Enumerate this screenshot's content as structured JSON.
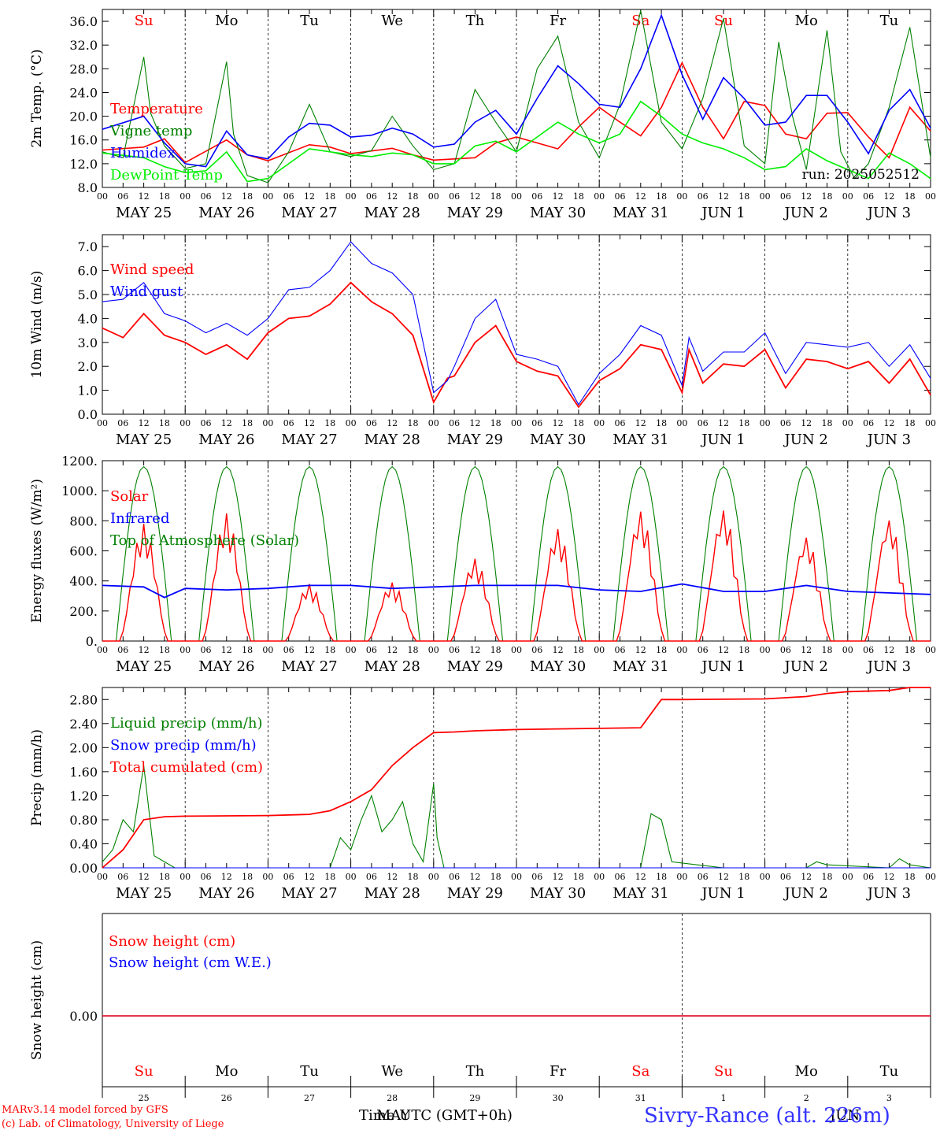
{
  "days": [
    "Su",
    "Mo",
    "Tu",
    "We",
    "Th",
    "Fr",
    "Sa",
    "Su",
    "Mo",
    "Tu"
  ],
  "day_colors": [
    "#ff0000",
    "#000000",
    "#000000",
    "#000000",
    "#000000",
    "#000000",
    "#ff0000",
    "#ff0000",
    "#000000",
    "#000000"
  ],
  "dates": [
    "MAY 25",
    "MAY 26",
    "MAY 27",
    "MAY 28",
    "MAY 29",
    "MAY 30",
    "MAY 31",
    "JUN  1",
    "JUN  2",
    "JUN  3"
  ],
  "hour_labels": [
    "00",
    "06",
    "12",
    "18"
  ],
  "day_numbers": [
    "25",
    "26",
    "27",
    "28",
    "29",
    "30",
    "31",
    "1",
    "2",
    "3"
  ],
  "footer": {
    "model": "MARv3.14 model forced by GFS",
    "lab": "(c) Lab. of Climatology, University of Liege",
    "time_label": "Time UTC (GMT+0h)",
    "month_label_1": "MAY",
    "month_label_2": "JUN",
    "station": "Sivry-Rance (alt. 226m)"
  },
  "chart_data": [
    {
      "type": "line",
      "ylabel": "2m Temp. (°C)",
      "ylim": [
        8,
        38
      ],
      "yticks": [
        "8.0",
        "12.0",
        "16.0",
        "20.0",
        "24.0",
        "28.0",
        "32.0",
        "36.0"
      ],
      "annotation": "run: 2025052512",
      "x_unit": "hours since MAY 25 00 UTC",
      "series": [
        {
          "name": "Temperature",
          "color": "#ff0000",
          "x": [
            0,
            12,
            18,
            24,
            36,
            42,
            48,
            60,
            66,
            72,
            84,
            90,
            96,
            108,
            114,
            120,
            132,
            138,
            144,
            150,
            156,
            162,
            168,
            174,
            180,
            186,
            192,
            198,
            204,
            210,
            216,
            222,
            228,
            234,
            240
          ],
          "values": [
            14.3,
            14.8,
            16.2,
            12.2,
            16.0,
            13.5,
            12.5,
            15.2,
            14.8,
            13.7,
            14.6,
            13.5,
            12.6,
            13.0,
            15.5,
            16.5,
            14.5,
            18.2,
            21.5,
            19.0,
            16.7,
            21.5,
            29.0,
            21.5,
            16.2,
            22.5,
            21.8,
            17.0,
            16.2,
            20.5,
            20.6,
            16.5,
            13.0,
            21.5,
            17.5
          ]
        },
        {
          "name": "Vigne temp",
          "color": "#008000",
          "x": [
            0,
            6,
            12,
            14,
            18,
            24,
            30,
            36,
            38,
            42,
            48,
            54,
            60,
            66,
            72,
            78,
            84,
            90,
            96,
            102,
            108,
            114,
            120,
            126,
            132,
            138,
            144,
            150,
            156,
            162,
            168,
            174,
            180,
            186,
            192,
            196,
            200,
            204,
            210,
            214,
            218,
            222,
            228,
            234,
            240
          ],
          "values": [
            14.0,
            13.0,
            30.0,
            20.5,
            15.0,
            11.2,
            12.0,
            29.2,
            17.0,
            10.0,
            8.8,
            14.0,
            22.0,
            14.0,
            13.2,
            14.2,
            20.0,
            15.0,
            11.0,
            12.0,
            24.5,
            19.0,
            14.0,
            28.0,
            33.5,
            19.0,
            13.0,
            22.0,
            37.8,
            19.0,
            14.5,
            23.0,
            36.5,
            15.0,
            12.0,
            32.5,
            20.0,
            11.0,
            34.5,
            14.0,
            9.5,
            12.0,
            21.5,
            35.0,
            13.0
          ]
        },
        {
          "name": "Humidex",
          "color": "#0000ff",
          "x": [
            0,
            12,
            18,
            24,
            30,
            36,
            42,
            48,
            54,
            60,
            66,
            72,
            78,
            84,
            90,
            96,
            102,
            108,
            114,
            120,
            126,
            132,
            138,
            144,
            150,
            156,
            162,
            168,
            174,
            180,
            186,
            192,
            198,
            204,
            210,
            216,
            222,
            228,
            234,
            240
          ],
          "values": [
            17.8,
            20.0,
            15.5,
            12.0,
            11.5,
            17.5,
            13.5,
            12.8,
            16.5,
            18.8,
            18.5,
            16.5,
            16.8,
            18.0,
            17.0,
            14.8,
            15.3,
            19.0,
            21.0,
            17.0,
            23.0,
            28.5,
            25.5,
            22.0,
            21.5,
            28.0,
            37.0,
            27.0,
            19.5,
            26.5,
            23.0,
            18.5,
            19.0,
            23.5,
            23.5,
            19.0,
            13.7,
            21.0,
            24.5,
            18.0
          ]
        },
        {
          "name": "DewPoint Temp",
          "color": "#00ee00",
          "x": [
            0,
            12,
            18,
            24,
            30,
            36,
            42,
            48,
            54,
            60,
            66,
            72,
            78,
            84,
            90,
            96,
            102,
            108,
            114,
            120,
            126,
            132,
            138,
            144,
            150,
            156,
            162,
            168,
            174,
            180,
            186,
            192,
            198,
            204,
            210,
            216,
            222,
            228,
            234,
            240
          ],
          "values": [
            13.8,
            13.0,
            11.5,
            10.5,
            10.8,
            14.0,
            9.0,
            9.5,
            12.0,
            14.5,
            14.0,
            13.5,
            13.2,
            13.8,
            13.5,
            12.0,
            12.0,
            15.0,
            15.8,
            14.0,
            16.5,
            19.0,
            17.0,
            15.5,
            17.0,
            22.5,
            20.0,
            17.0,
            15.5,
            14.5,
            13.0,
            11.0,
            11.5,
            14.5,
            12.5,
            11.0,
            9.5,
            13.8,
            12.0,
            9.5
          ]
        }
      ]
    },
    {
      "type": "line",
      "ylabel": "10m Wind (m/s)",
      "ylim": [
        0,
        7.5
      ],
      "yticks": [
        "0.0",
        "1.0",
        "2.0",
        "3.0",
        "4.0",
        "5.0",
        "6.0",
        "7.0"
      ],
      "hline": 5.0,
      "x_unit": "hours since MAY 25 00 UTC",
      "series": [
        {
          "name": "Wind speed",
          "color": "#ff0000",
          "x": [
            0,
            6,
            12,
            18,
            24,
            30,
            36,
            42,
            48,
            54,
            60,
            66,
            72,
            78,
            84,
            90,
            96,
            100,
            102,
            108,
            114,
            120,
            126,
            132,
            138,
            144,
            150,
            156,
            162,
            168,
            170,
            174,
            180,
            186,
            192,
            198,
            204,
            210,
            216,
            222,
            228,
            234,
            240
          ],
          "values": [
            3.6,
            3.2,
            4.2,
            3.3,
            3.0,
            2.5,
            2.9,
            2.3,
            3.4,
            4.0,
            4.1,
            4.6,
            5.5,
            4.7,
            4.2,
            3.3,
            0.5,
            1.5,
            1.6,
            3.0,
            3.7,
            2.2,
            1.8,
            1.6,
            0.3,
            1.4,
            1.9,
            2.9,
            2.7,
            0.9,
            2.7,
            1.3,
            2.1,
            2.0,
            2.7,
            1.1,
            2.3,
            2.2,
            1.9,
            2.2,
            1.3,
            2.3,
            0.8
          ]
        },
        {
          "name": "Wind gust",
          "color": "#0000ff",
          "x": [
            0,
            6,
            12,
            18,
            24,
            30,
            36,
            42,
            48,
            54,
            60,
            66,
            72,
            78,
            84,
            90,
            96,
            100,
            102,
            108,
            114,
            120,
            126,
            132,
            138,
            144,
            150,
            156,
            162,
            168,
            170,
            174,
            180,
            186,
            192,
            198,
            204,
            210,
            216,
            222,
            228,
            234,
            240
          ],
          "values": [
            4.7,
            4.8,
            5.5,
            4.2,
            3.9,
            3.4,
            3.8,
            3.3,
            4.0,
            5.2,
            5.3,
            6.0,
            7.2,
            6.3,
            5.9,
            5.0,
            0.9,
            1.4,
            2.0,
            4.0,
            4.8,
            2.5,
            2.3,
            2.0,
            0.4,
            1.7,
            2.5,
            3.7,
            3.3,
            1.2,
            3.2,
            1.8,
            2.6,
            2.6,
            3.4,
            1.7,
            3.0,
            2.9,
            2.8,
            3.0,
            2.0,
            2.9,
            1.5
          ]
        }
      ]
    },
    {
      "type": "line",
      "ylabel": "Energy fluxes (W/m²)",
      "ylim": [
        0,
        1200
      ],
      "yticks": [
        "0.",
        "200.",
        "400.",
        "600.",
        "800.",
        "1000.",
        "1200."
      ],
      "x_unit": "hours since MAY 25 00 UTC",
      "series": [
        {
          "name": "Solar",
          "color": "#ff0000",
          "peaks": [
            780,
            850,
            380,
            390,
            550,
            750,
            870,
            880,
            700,
            820
          ]
        },
        {
          "name": "Infrared",
          "color": "#0000ff",
          "x": [
            0,
            12,
            18,
            24,
            36,
            48,
            60,
            72,
            84,
            96,
            108,
            120,
            132,
            144,
            156,
            168,
            180,
            192,
            204,
            216,
            228,
            240
          ],
          "values": [
            370,
            360,
            290,
            350,
            340,
            350,
            370,
            370,
            350,
            360,
            370,
            370,
            370,
            340,
            330,
            380,
            330,
            330,
            370,
            330,
            320,
            310
          ]
        },
        {
          "name": "Top of Atmosphere (Solar)",
          "color": "#008000",
          "peak": 1160
        }
      ]
    },
    {
      "type": "line",
      "ylabel": "Precip (mm/h)",
      "ylim": [
        0,
        3.0
      ],
      "yticks": [
        "0.00",
        "0.40",
        "0.80",
        "1.20",
        "1.60",
        "2.00",
        "2.40",
        "2.80"
      ],
      "x_unit": "hours since MAY 25 00 UTC",
      "series": [
        {
          "name": "Liquid precip (mm/h)",
          "color": "#008000",
          "x": [
            0,
            3,
            6,
            9,
            12,
            15,
            18,
            21,
            24,
            66,
            69,
            72,
            75,
            78,
            81,
            84,
            87,
            90,
            93,
            96,
            97,
            99,
            102,
            156,
            159,
            162,
            165,
            180,
            204,
            207,
            210,
            228,
            231,
            234,
            240
          ],
          "values": [
            0.1,
            0.3,
            0.8,
            0.6,
            1.7,
            0.2,
            0.1,
            0.0,
            0.0,
            0.0,
            0.5,
            0.3,
            0.8,
            1.2,
            0.6,
            0.8,
            1.1,
            0.4,
            0.1,
            1.4,
            0.5,
            0.0,
            0.0,
            0.0,
            0.9,
            0.8,
            0.1,
            0.0,
            0.0,
            0.1,
            0.05,
            0.0,
            0.15,
            0.05,
            0.0
          ]
        },
        {
          "name": "Snow precip (mm/h)",
          "color": "#0000ff",
          "x": [
            0,
            240
          ],
          "values": [
            0,
            0
          ]
        },
        {
          "name": "Total cumulated (cm)",
          "color": "#ff0000",
          "x": [
            0,
            6,
            12,
            18,
            24,
            48,
            60,
            66,
            72,
            78,
            84,
            90,
            96,
            102,
            108,
            120,
            144,
            156,
            162,
            168,
            192,
            204,
            210,
            216,
            228,
            234,
            240
          ],
          "values": [
            0.0,
            0.3,
            0.8,
            0.85,
            0.86,
            0.87,
            0.89,
            0.95,
            1.1,
            1.3,
            1.7,
            2.0,
            2.25,
            2.26,
            2.28,
            2.3,
            2.32,
            2.33,
            2.8,
            2.8,
            2.81,
            2.85,
            2.9,
            2.93,
            2.95,
            3.0,
            3.0
          ]
        }
      ]
    },
    {
      "type": "line",
      "ylabel": "Snow height (cm)",
      "yticks": [
        "0.00"
      ],
      "series": [
        {
          "name": "Snow height (cm)",
          "color": "#ff0000",
          "x": [
            0,
            240
          ],
          "values": [
            0,
            0
          ]
        },
        {
          "name": "Snow height (cm W.E.)",
          "color": "#0000ff",
          "x": [
            0,
            240
          ],
          "values": [
            0,
            0
          ]
        }
      ]
    }
  ]
}
